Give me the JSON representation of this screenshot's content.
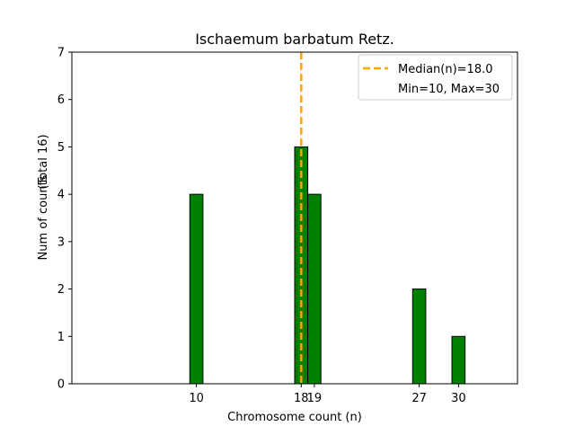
{
  "chart_data": {
    "type": "bar",
    "title": "Ischaemum barbatum Retz.",
    "xlabel": "Chromosome count (n)",
    "ylabel": "Num of counts",
    "ylabel_total": "(Total 16)",
    "x": [
      10,
      18,
      19,
      27,
      30
    ],
    "values": [
      4,
      5,
      4,
      2,
      1
    ],
    "xticks": [
      10,
      18,
      19,
      27,
      30
    ],
    "xlim": [
      0.5,
      34.5
    ],
    "ylim": [
      0,
      7
    ],
    "yticks": [
      0,
      1,
      2,
      3,
      4,
      5,
      6,
      7
    ],
    "bar_width": 1,
    "bar_color": "#008000",
    "bar_edge_color": "#000000",
    "median": 18.0,
    "median_color": "#FFA500",
    "legend": {
      "position": "top-right",
      "entries": [
        "Median(n)=18.0",
        "Min=10, Max=30"
      ]
    },
    "grid": false
  }
}
